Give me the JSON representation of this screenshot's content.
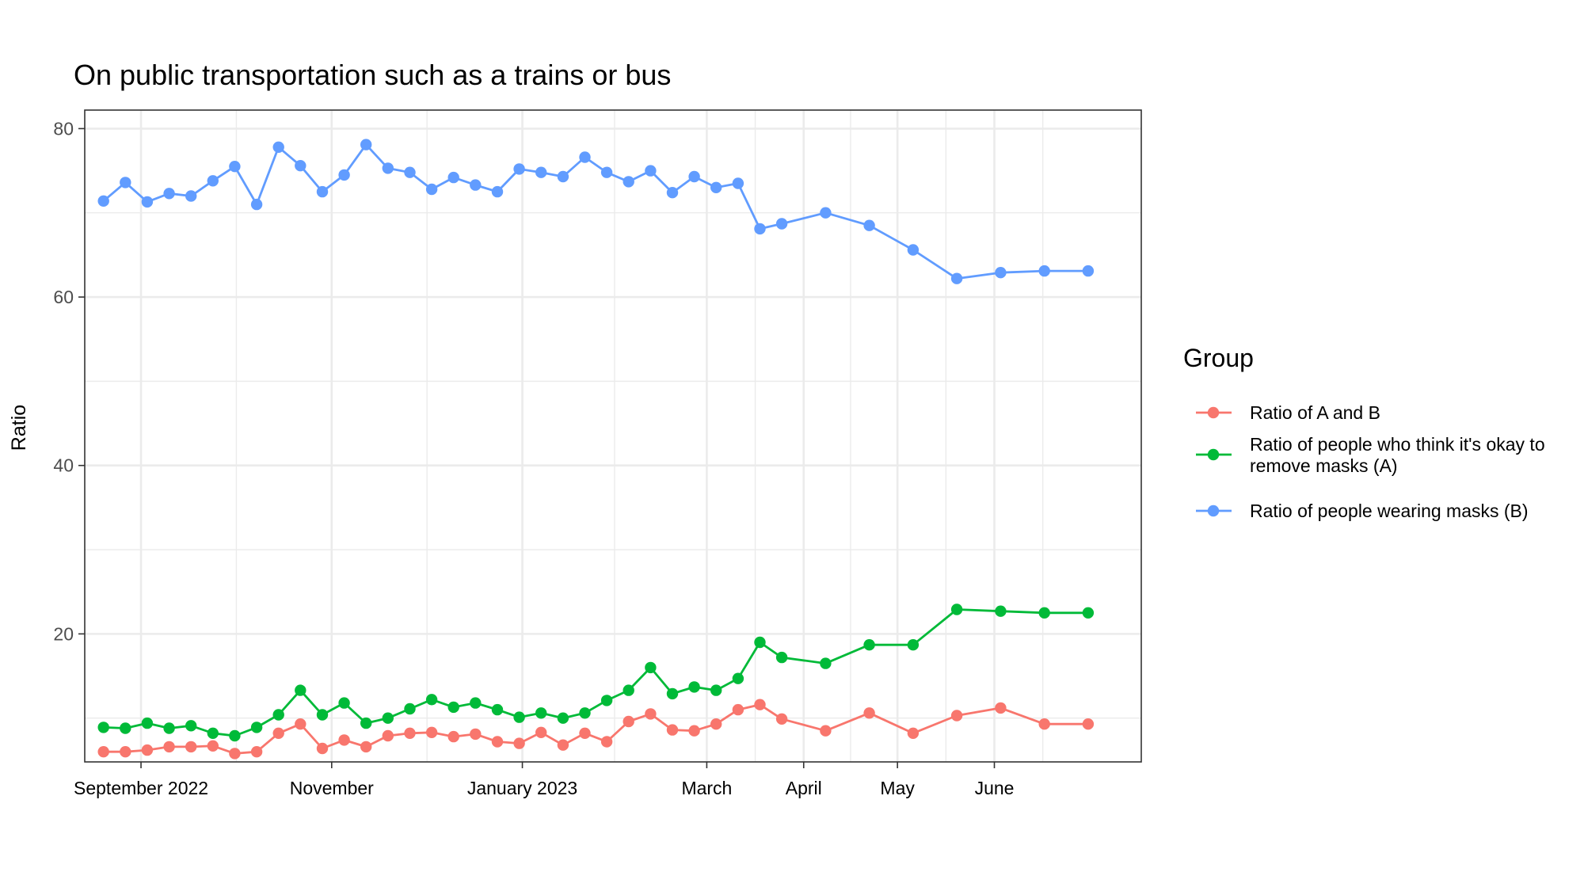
{
  "chart_data": {
    "type": "line",
    "title": "On public transportation such as a trains or bus",
    "xlabel": "",
    "ylabel": "Ratio",
    "ylim": [
      4.8,
      82.2
    ],
    "yticks": [
      20,
      40,
      60,
      80
    ],
    "xlim": [
      "2022-08-14",
      "2023-07-18"
    ],
    "xticks": [
      {
        "date": "2022-09-01",
        "label": "September 2022"
      },
      {
        "date": "2022-11-01",
        "label": "November"
      },
      {
        "date": "2023-01-01",
        "label": "January 2023"
      },
      {
        "date": "2023-03-01",
        "label": "March"
      },
      {
        "date": "2023-04-01",
        "label": "April"
      },
      {
        "date": "2023-05-01",
        "label": "May"
      },
      {
        "date": "2023-06-01",
        "label": "June"
      }
    ],
    "grid": true,
    "legend": {
      "title": "Group",
      "position": "right"
    },
    "x": [
      "2022-08-20",
      "2022-08-27",
      "2022-09-03",
      "2022-09-10",
      "2022-09-17",
      "2022-09-24",
      "2022-10-01",
      "2022-10-08",
      "2022-10-15",
      "2022-10-22",
      "2022-10-29",
      "2022-11-05",
      "2022-11-12",
      "2022-11-19",
      "2022-11-26",
      "2022-12-03",
      "2022-12-10",
      "2022-12-17",
      "2022-12-24",
      "2022-12-31",
      "2023-01-07",
      "2023-01-14",
      "2023-01-21",
      "2023-01-28",
      "2023-02-04",
      "2023-02-11",
      "2023-02-18",
      "2023-02-25",
      "2023-03-04",
      "2023-03-11",
      "2023-03-18",
      "2023-03-25",
      "2023-04-08",
      "2023-04-22",
      "2023-05-06",
      "2023-05-20",
      "2023-06-03",
      "2023-06-17",
      "2023-07-01"
    ],
    "series": [
      {
        "name": "Ratio of A and B",
        "color": "#F8766D",
        "values": [
          6.0,
          6.0,
          6.2,
          6.6,
          6.6,
          6.7,
          5.8,
          6.0,
          8.2,
          9.3,
          6.4,
          7.4,
          6.6,
          7.9,
          8.2,
          8.3,
          7.8,
          8.1,
          7.2,
          7.0,
          8.3,
          6.8,
          8.2,
          7.2,
          9.6,
          10.5,
          8.6,
          8.5,
          9.3,
          11.0,
          11.6,
          9.9,
          8.5,
          10.6,
          8.2,
          10.3,
          11.2,
          9.3,
          9.3
        ]
      },
      {
        "name": "Ratio of people who think it's okay to remove masks (A)",
        "color": "#00BA38",
        "values": [
          8.9,
          8.8,
          9.4,
          8.8,
          9.1,
          8.2,
          7.9,
          8.9,
          10.4,
          13.3,
          10.4,
          11.8,
          9.4,
          10.0,
          11.1,
          12.2,
          11.3,
          11.8,
          11.0,
          10.1,
          10.6,
          10.0,
          10.6,
          12.1,
          13.3,
          16.0,
          12.9,
          13.7,
          13.3,
          14.7,
          19.0,
          17.2,
          16.5,
          18.7,
          18.7,
          22.9,
          22.7,
          22.5,
          22.5
        ]
      },
      {
        "name": "Ratio of people wearing masks (B)",
        "color": "#619CFF",
        "values": [
          71.4,
          73.6,
          71.3,
          72.3,
          72.0,
          73.8,
          75.5,
          71.0,
          77.8,
          75.6,
          72.5,
          74.5,
          78.1,
          75.3,
          74.8,
          72.8,
          74.2,
          73.3,
          72.5,
          75.2,
          74.8,
          74.3,
          76.6,
          74.8,
          73.7,
          75.0,
          72.4,
          74.3,
          73.0,
          73.5,
          68.1,
          68.7,
          70.0,
          68.5,
          65.6,
          62.2,
          62.9,
          63.1,
          63.1
        ]
      }
    ]
  }
}
